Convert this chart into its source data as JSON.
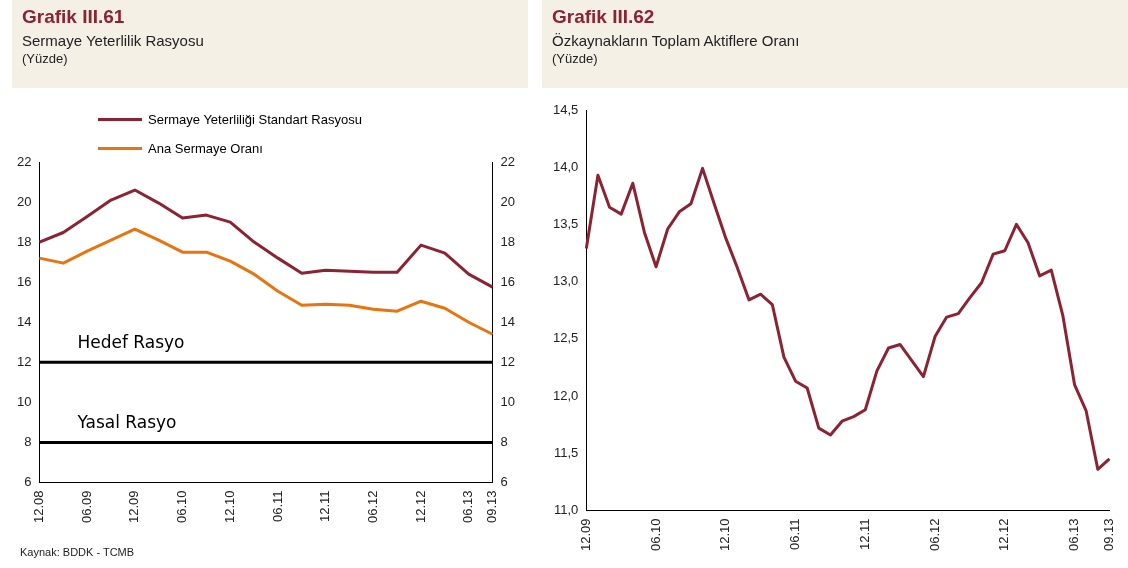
{
  "chart_data": [
    {
      "type": "line",
      "title": "Grafik III.61",
      "subtitle": "Sermaye Yeterlilik Rasyosu",
      "ylabel": "(Yüzde)",
      "categories": [
        "12.08",
        null,
        "06.09",
        null,
        "12.09",
        null,
        "06.10",
        null,
        "12.10",
        null,
        "06.11",
        null,
        "12.11",
        null,
        "06.12",
        null,
        "12.12",
        null,
        "06.13",
        "09.13"
      ],
      "series": [
        {
          "name": "Sermaye Yeterliliği Standart Rasyosu",
          "color": "#8b2332",
          "values": [
            18.0,
            18.48,
            19.28,
            20.1,
            20.6,
            19.95,
            19.2,
            19.35,
            19.0,
            18.0,
            17.2,
            16.45,
            16.6,
            16.55,
            16.5,
            16.5,
            17.85,
            17.45,
            16.4,
            15.75
          ]
        },
        {
          "name": "Ana Sermaye Oranı",
          "color": "#e8740f",
          "values": [
            17.2,
            16.95,
            17.55,
            18.1,
            18.65,
            18.1,
            17.5,
            17.5,
            17.05,
            16.4,
            15.55,
            14.85,
            14.9,
            14.85,
            14.65,
            14.55,
            15.05,
            14.7,
            14.0,
            13.4
          ]
        }
      ],
      "ylim": [
        6,
        22
      ],
      "yticks": [
        6,
        8,
        10,
        12,
        14,
        16,
        18,
        20,
        22
      ],
      "y2lim": [
        6,
        22
      ],
      "y2ticks": [
        6,
        8,
        10,
        12,
        14,
        16,
        18,
        20,
        22
      ],
      "ref_lines": [
        {
          "axis": "y",
          "value": 12,
          "label": "Hedef Rasyo",
          "color": "#000000"
        },
        {
          "axis": "y",
          "value": 8,
          "label": "Yasal Rasyo",
          "color": "#000000"
        }
      ],
      "annotations": [
        "Kaynak: BDDK - TCMB"
      ],
      "grid": false,
      "legend": "top left",
      "line_style": "solid",
      "marker": "none"
    },
    {
      "type": "line",
      "title": "Grafik III.62",
      "subtitle": "Özkaynakların Toplam Aktiflere Oranı",
      "ylabel": "(Yüzde)",
      "categories": [
        "12.09",
        null,
        null,
        null,
        null,
        null,
        "06.10",
        null,
        null,
        null,
        null,
        null,
        "12.10",
        null,
        null,
        null,
        null,
        null,
        "06.11",
        null,
        null,
        null,
        null,
        null,
        "12.11",
        null,
        null,
        null,
        null,
        null,
        "06.12",
        null,
        null,
        null,
        null,
        null,
        "12.12",
        null,
        null,
        null,
        null,
        null,
        "06.13",
        null,
        null,
        "09.13"
      ],
      "series": [
        {
          "color": "#8b2332",
          "values": [
            13.29,
            13.93,
            13.65,
            13.59,
            13.86,
            13.43,
            13.13,
            13.46,
            13.61,
            13.68,
            13.99,
            13.68,
            13.38,
            13.12,
            12.84,
            12.89,
            12.8,
            12.34,
            12.13,
            12.07,
            11.72,
            11.66,
            11.78,
            11.82,
            11.88,
            12.22,
            12.42,
            12.45,
            12.31,
            12.17,
            12.52,
            12.69,
            12.72,
            12.86,
            12.99,
            13.24,
            13.27,
            13.5,
            13.34,
            13.05,
            13.1,
            12.7,
            12.1,
            11.87,
            11.36,
            11.45
          ]
        }
      ],
      "ylim": [
        11,
        14.5
      ],
      "yticks": [
        {
          "value": 11,
          "label": "11,0"
        },
        {
          "value": 11.5,
          "label": "11,5"
        },
        {
          "value": 12,
          "label": "12,0"
        },
        {
          "value": 12.5,
          "label": "12,5"
        },
        {
          "value": 13,
          "label": "13,0"
        },
        {
          "value": 13.5,
          "label": "13,5"
        },
        {
          "value": 14,
          "label": "14,0"
        },
        {
          "value": 14.5,
          "label": "14,5"
        }
      ],
      "grid": false,
      "legend": false,
      "line_style": "solid",
      "marker": "none"
    }
  ]
}
